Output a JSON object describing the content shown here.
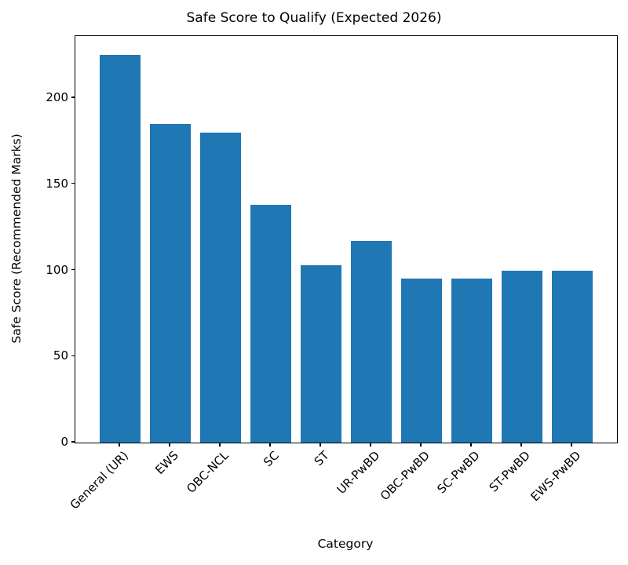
{
  "chart_data": {
    "type": "bar",
    "title": "Safe Score to Qualify (Expected 2026)",
    "xlabel": "Category",
    "ylabel": "Safe Score (Recommended Marks)",
    "categories": [
      "General (UR)",
      "EWS",
      "OBC-NCL",
      "SC",
      "ST",
      "UR-PwBD",
      "OBC-PwBD",
      "SC-PwBD",
      "ST-PwBD",
      "EWS-PwBD"
    ],
    "values": [
      225,
      185,
      180,
      138,
      103,
      117,
      95,
      95,
      100,
      100
    ],
    "yticks": [
      0,
      50,
      100,
      150,
      200
    ],
    "ylim": [
      0,
      236
    ],
    "bar_color": "#1f77b4",
    "bar_width_frac": 0.8,
    "grid": false,
    "legend": "none",
    "axis_color": "#000000",
    "background_color": "#ffffff"
  }
}
